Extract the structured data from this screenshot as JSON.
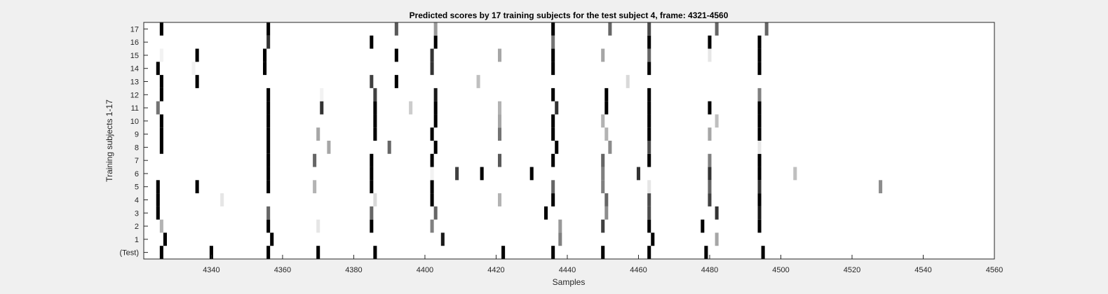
{
  "chart_data": {
    "type": "heatmap",
    "title": "Predicted scores by 17 training subjects for the test subject 4, frame: 4321-4560",
    "xlabel": "Samples",
    "ylabel": "Training subjects 1-17",
    "xlim": [
      4321,
      4560
    ],
    "xticks": [
      4340,
      4360,
      4380,
      4400,
      4420,
      4440,
      4460,
      4480,
      4500,
      4520,
      4540,
      4560
    ],
    "rows": [
      "(Test)",
      "1",
      "2",
      "3",
      "4",
      "5",
      "6",
      "7",
      "8",
      "9",
      "10",
      "11",
      "12",
      "13",
      "14",
      "15",
      "16",
      "17"
    ],
    "grid": false,
    "colormap": "grayscale (0 = white, 1 = black)",
    "cells": [
      {
        "row": "(Test)",
        "points": [
          [
            4326,
            1
          ],
          [
            4340,
            1
          ],
          [
            4356,
            1
          ],
          [
            4370,
            1
          ],
          [
            4386,
            1
          ],
          [
            4422,
            1
          ],
          [
            4436,
            1
          ],
          [
            4450,
            1
          ],
          [
            4463,
            1
          ],
          [
            4479,
            1
          ],
          [
            4495,
            1
          ]
        ]
      },
      {
        "row": "1",
        "points": [
          [
            4327,
            1
          ],
          [
            4357,
            1
          ],
          [
            4405,
            0.9
          ],
          [
            4438,
            0.5
          ],
          [
            4464,
            1
          ],
          [
            4482,
            0.35
          ]
        ]
      },
      {
        "row": "2",
        "points": [
          [
            4326,
            0.3
          ],
          [
            4356,
            1
          ],
          [
            4370,
            0.1
          ],
          [
            4385,
            1
          ],
          [
            4402,
            0.5
          ],
          [
            4438,
            0.4
          ],
          [
            4450,
            0.75
          ],
          [
            4463,
            1
          ],
          [
            4478,
            1
          ],
          [
            4494,
            1
          ]
        ]
      },
      {
        "row": "3",
        "points": [
          [
            4325,
            1
          ],
          [
            4356,
            0.6
          ],
          [
            4385,
            0.6
          ],
          [
            4403,
            0.6
          ],
          [
            4434,
            1
          ],
          [
            4451,
            0.45
          ],
          [
            4463,
            0.7
          ],
          [
            4482,
            0.8
          ],
          [
            4494,
            0.9
          ]
        ]
      },
      {
        "row": "4",
        "points": [
          [
            4325,
            1
          ],
          [
            4343,
            0.1
          ],
          [
            4386,
            0.15
          ],
          [
            4402,
            1
          ],
          [
            4421,
            0.3
          ],
          [
            4436,
            1
          ],
          [
            4451,
            0.6
          ],
          [
            4463,
            0.7
          ],
          [
            4480,
            0.75
          ],
          [
            4494,
            1
          ]
        ]
      },
      {
        "row": "5",
        "points": [
          [
            4325,
            1
          ],
          [
            4336,
            1
          ],
          [
            4356,
            1
          ],
          [
            4369,
            0.3
          ],
          [
            4385,
            1
          ],
          [
            4402,
            1
          ],
          [
            4436,
            0.6
          ],
          [
            4450,
            0.5
          ],
          [
            4463,
            0.1
          ],
          [
            4480,
            0.6
          ],
          [
            4494,
            0.8
          ],
          [
            4528,
            0.45
          ]
        ]
      },
      {
        "row": "6",
        "points": [
          [
            4356,
            1
          ],
          [
            4385,
            1
          ],
          [
            4402,
            0.05
          ],
          [
            4409,
            0.75
          ],
          [
            4416,
            1
          ],
          [
            4430,
            1
          ],
          [
            4450,
            0.5
          ],
          [
            4460,
            0.8
          ],
          [
            4480,
            0.8
          ],
          [
            4494,
            1
          ],
          [
            4504,
            0.25
          ]
        ]
      },
      {
        "row": "7",
        "points": [
          [
            4356,
            1
          ],
          [
            4369,
            0.6
          ],
          [
            4385,
            1
          ],
          [
            4402,
            1
          ],
          [
            4421,
            0.65
          ],
          [
            4436,
            1
          ],
          [
            4450,
            0.6
          ],
          [
            4463,
            1
          ],
          [
            4480,
            0.5
          ],
          [
            4494,
            1
          ]
        ]
      },
      {
        "row": "8",
        "points": [
          [
            4326,
            1
          ],
          [
            4356,
            1
          ],
          [
            4373,
            0.35
          ],
          [
            4390,
            0.6
          ],
          [
            4403,
            1
          ],
          [
            4437,
            1
          ],
          [
            4452,
            0.45
          ],
          [
            4463,
            0.7
          ],
          [
            4494,
            0.1
          ]
        ]
      },
      {
        "row": "9",
        "points": [
          [
            4326,
            1
          ],
          [
            4356,
            1
          ],
          [
            4370,
            0.35
          ],
          [
            4386,
            1
          ],
          [
            4402,
            1
          ],
          [
            4421,
            0.55
          ],
          [
            4436,
            1
          ],
          [
            4451,
            0.3
          ],
          [
            4463,
            1
          ],
          [
            4480,
            0.35
          ],
          [
            4494,
            1
          ]
        ]
      },
      {
        "row": "10",
        "points": [
          [
            4326,
            1
          ],
          [
            4356,
            1
          ],
          [
            4386,
            1
          ],
          [
            4403,
            1
          ],
          [
            4421,
            0.35
          ],
          [
            4436,
            1
          ],
          [
            4450,
            0.3
          ],
          [
            4463,
            1
          ],
          [
            4482,
            0.25
          ],
          [
            4494,
            1
          ]
        ]
      },
      {
        "row": "11",
        "points": [
          [
            4325,
            0.55
          ],
          [
            4356,
            1
          ],
          [
            4371,
            0.8
          ],
          [
            4386,
            1
          ],
          [
            4396,
            0.2
          ],
          [
            4403,
            1
          ],
          [
            4421,
            0.3
          ],
          [
            4437,
            0.8
          ],
          [
            4451,
            1
          ],
          [
            4463,
            1
          ],
          [
            4480,
            1
          ],
          [
            4494,
            1
          ]
        ]
      },
      {
        "row": "12",
        "points": [
          [
            4326,
            1
          ],
          [
            4356,
            1
          ],
          [
            4371,
            0.05
          ],
          [
            4386,
            0.75
          ],
          [
            4403,
            0.9
          ],
          [
            4436,
            1
          ],
          [
            4451,
            1
          ],
          [
            4463,
            1
          ],
          [
            4494,
            0.5
          ]
        ]
      },
      {
        "row": "13",
        "points": [
          [
            4326,
            1
          ],
          [
            4336,
            1
          ],
          [
            4385,
            0.75
          ],
          [
            4392,
            1
          ],
          [
            4415,
            0.25
          ],
          [
            4457,
            0.15
          ]
        ]
      },
      {
        "row": "14",
        "points": [
          [
            4325,
            1
          ],
          [
            4335,
            0.05
          ],
          [
            4355,
            1
          ],
          [
            4402,
            0.8
          ],
          [
            4436,
            1
          ],
          [
            4463,
            1
          ],
          [
            4494,
            1
          ]
        ]
      },
      {
        "row": "15",
        "points": [
          [
            4326,
            0.05
          ],
          [
            4336,
            1
          ],
          [
            4355,
            1
          ],
          [
            4392,
            1
          ],
          [
            4402,
            0.8
          ],
          [
            4421,
            0.35
          ],
          [
            4436,
            1
          ],
          [
            4450,
            0.35
          ],
          [
            4463,
            0.6
          ],
          [
            4480,
            0.1
          ],
          [
            4494,
            1
          ]
        ]
      },
      {
        "row": "16",
        "points": [
          [
            4356,
            0.8
          ],
          [
            4385,
            1
          ],
          [
            4403,
            1
          ],
          [
            4436,
            0.55
          ],
          [
            4463,
            1
          ],
          [
            4480,
            1
          ],
          [
            4494,
            1
          ]
        ]
      },
      {
        "row": "17",
        "points": [
          [
            4326,
            1
          ],
          [
            4356,
            1
          ],
          [
            4392,
            0.65
          ],
          [
            4403,
            0.4
          ],
          [
            4436,
            1
          ],
          [
            4452,
            0.6
          ],
          [
            4463,
            0.7
          ],
          [
            4482,
            0.6
          ],
          [
            4496,
            0.6
          ]
        ]
      }
    ]
  }
}
